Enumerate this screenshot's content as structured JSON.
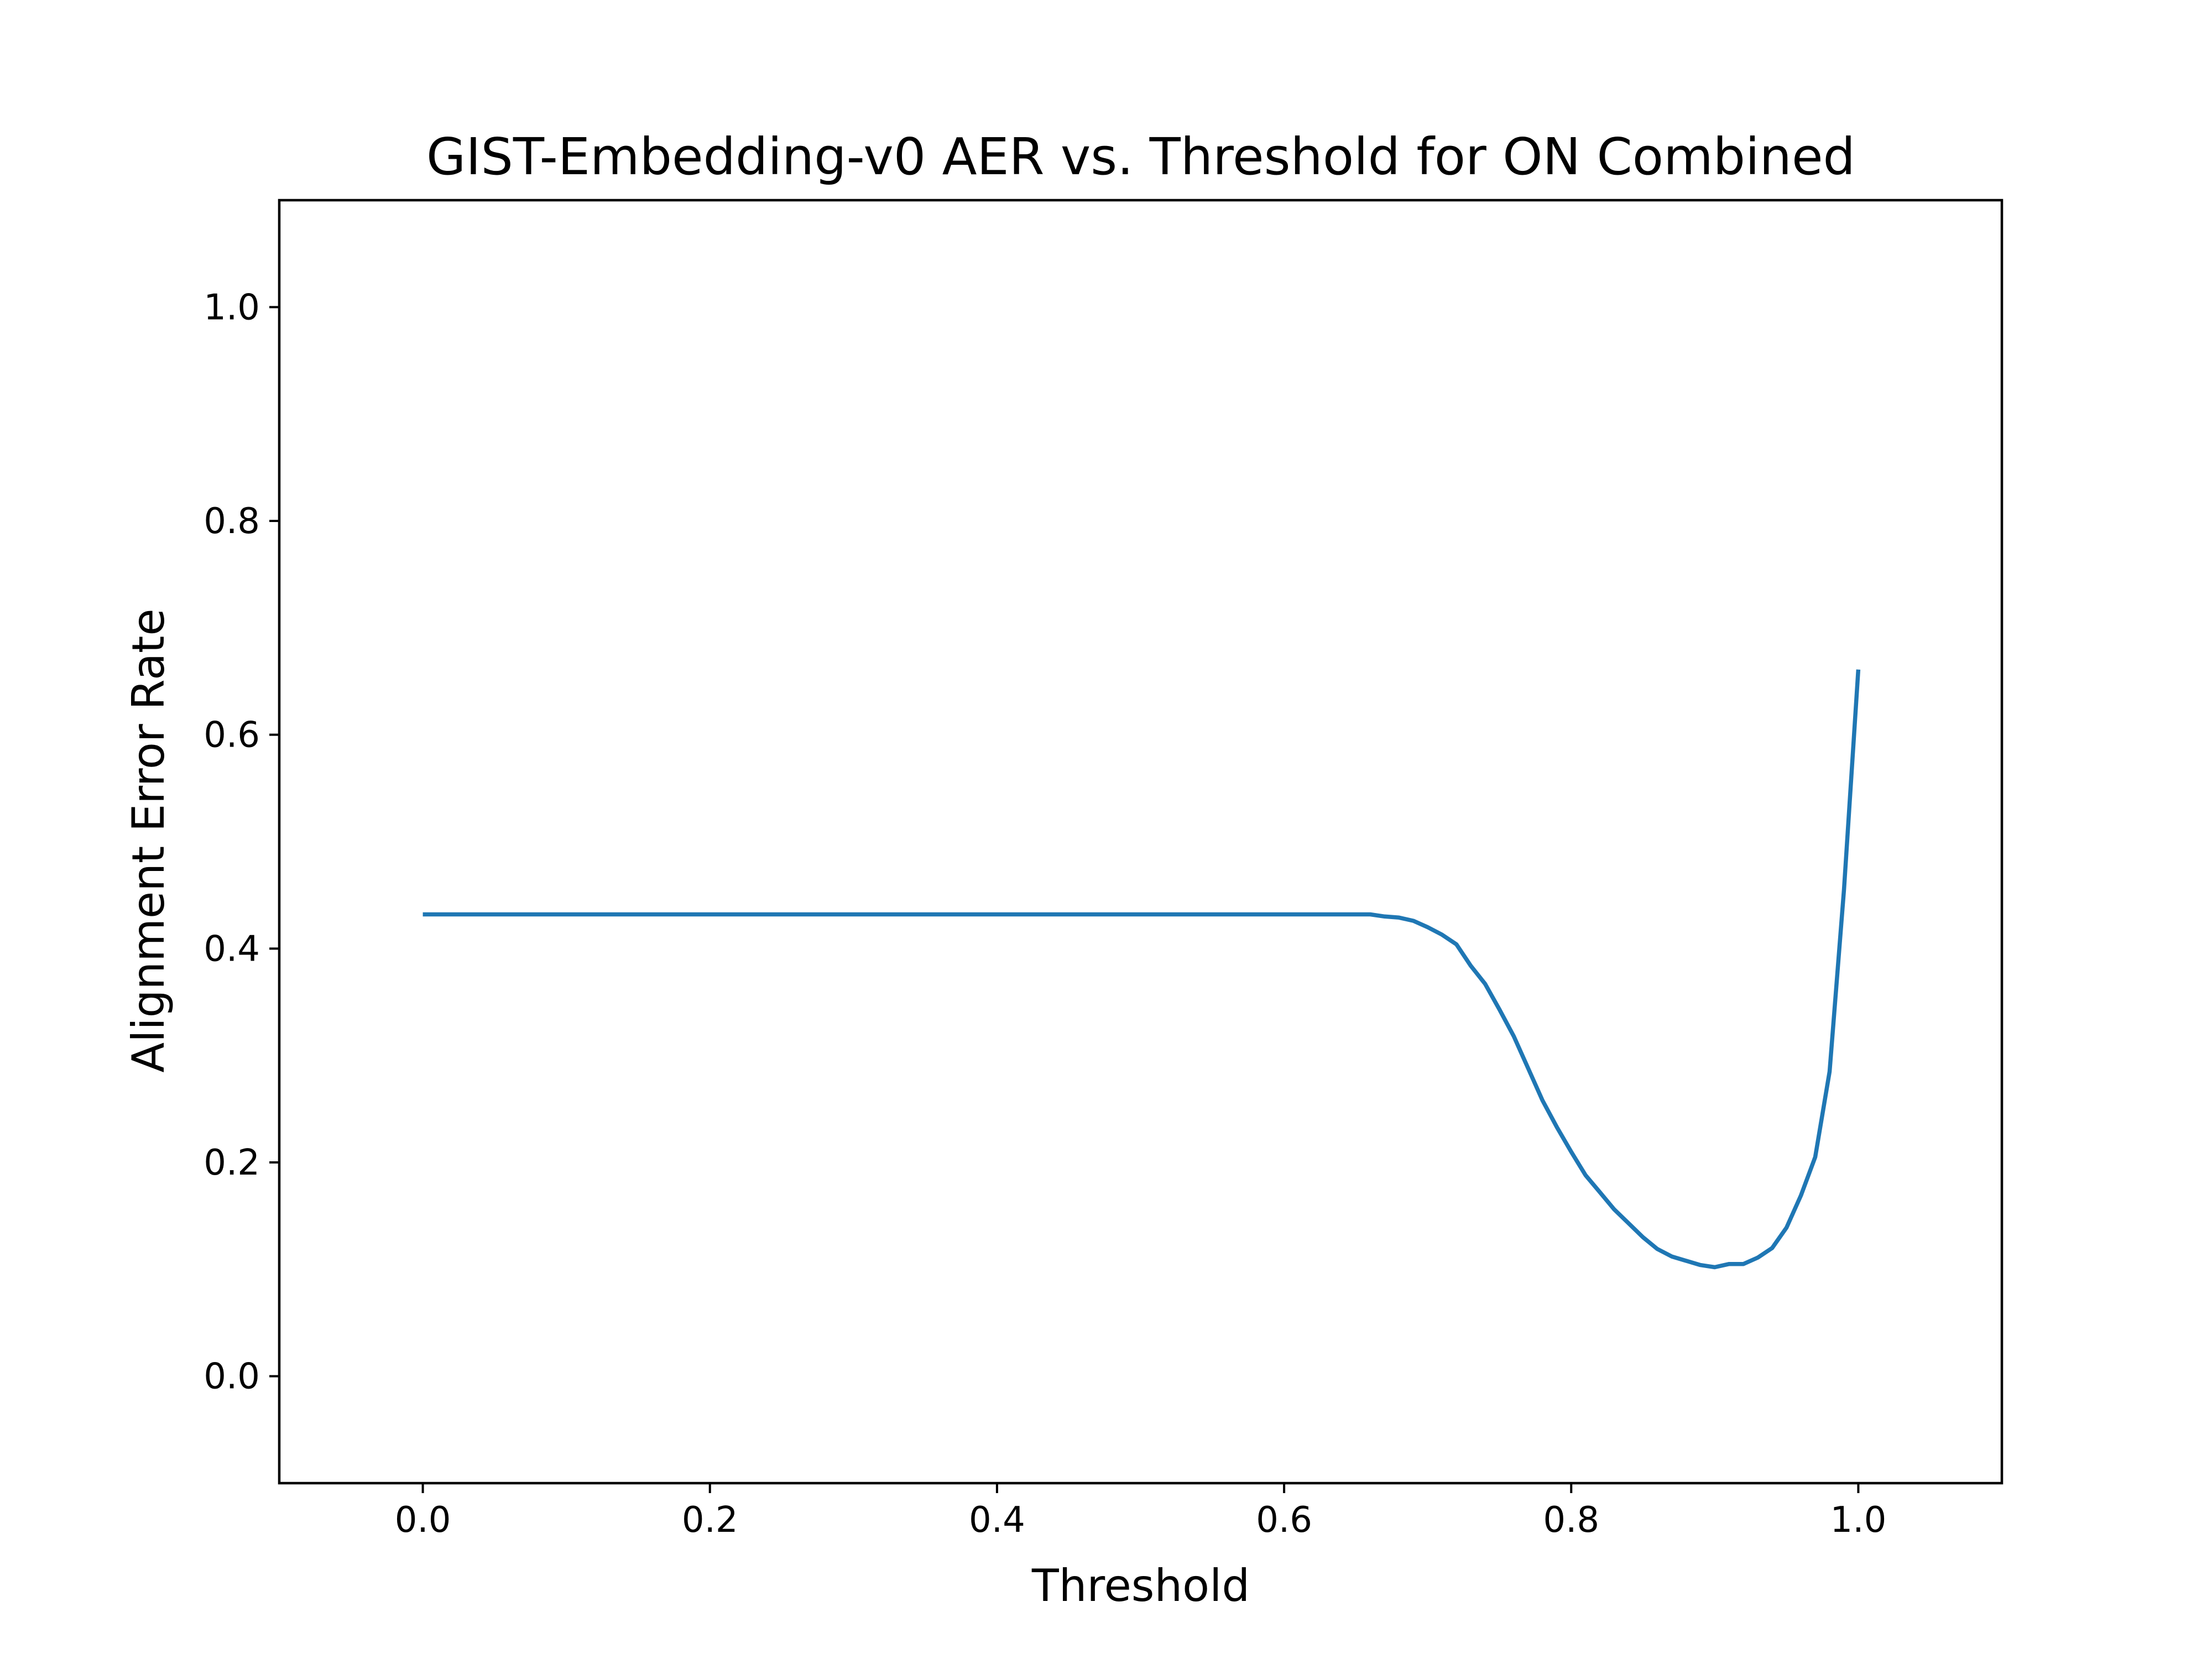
{
  "chart_data": {
    "type": "line",
    "title": "GIST-Embedding-v0 AER vs. Threshold for ON Combined",
    "xlabel": "Threshold",
    "ylabel": "Alignment Error Rate",
    "xlim": [
      -0.1,
      1.1
    ],
    "ylim": [
      -0.1,
      1.1
    ],
    "xticks": [
      0.0,
      0.2,
      0.4,
      0.6,
      0.8,
      1.0
    ],
    "yticks": [
      0.0,
      0.2,
      0.4,
      0.6,
      0.8,
      1.0
    ],
    "xtick_labels": [
      "0.0",
      "0.2",
      "0.4",
      "0.6",
      "0.8",
      "1.0"
    ],
    "ytick_labels": [
      "0.0",
      "0.2",
      "0.4",
      "0.6",
      "0.8",
      "1.0"
    ],
    "grid": false,
    "legend": "none",
    "line_color": "#1f77b4",
    "series": [
      {
        "x": [
          0.0,
          0.1,
          0.2,
          0.3,
          0.4,
          0.5,
          0.6,
          0.66,
          0.67,
          0.68,
          0.69,
          0.7,
          0.71,
          0.72,
          0.73,
          0.74,
          0.75,
          0.76,
          0.77,
          0.78,
          0.79,
          0.8,
          0.81,
          0.82,
          0.83,
          0.84,
          0.85,
          0.86,
          0.87,
          0.88,
          0.89,
          0.9,
          0.91,
          0.92,
          0.93,
          0.94,
          0.95,
          0.96,
          0.97,
          0.98,
          0.99,
          1.0
        ],
        "values": [
          0.432,
          0.432,
          0.432,
          0.432,
          0.432,
          0.432,
          0.432,
          0.432,
          0.43,
          0.429,
          0.426,
          0.42,
          0.413,
          0.404,
          0.384,
          0.367,
          0.343,
          0.318,
          0.288,
          0.258,
          0.233,
          0.21,
          0.188,
          0.172,
          0.156,
          0.143,
          0.13,
          0.119,
          0.112,
          0.108,
          0.104,
          0.102,
          0.105,
          0.105,
          0.111,
          0.12,
          0.139,
          0.169,
          0.205,
          0.285,
          0.455,
          0.661
        ]
      }
    ]
  }
}
